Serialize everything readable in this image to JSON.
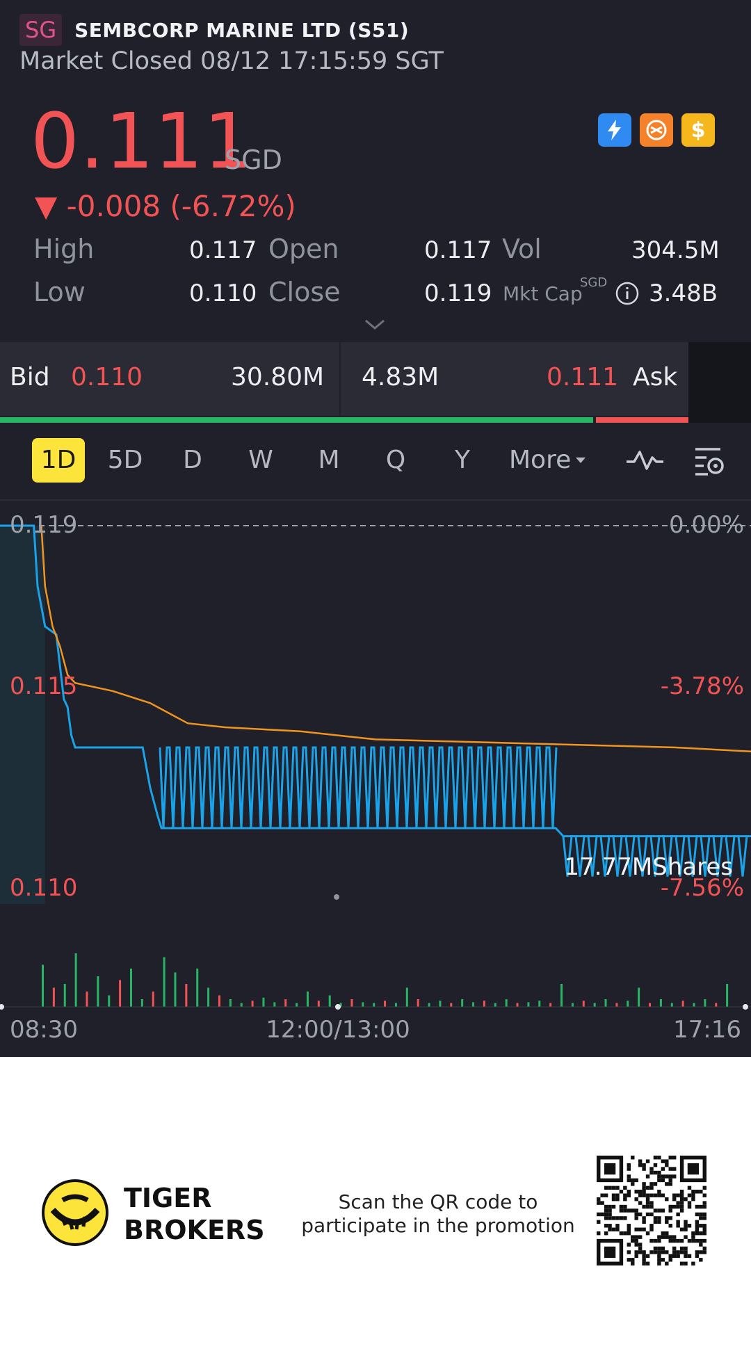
{
  "header": {
    "market_tag": "SG",
    "stock_name": "SEMBCORP MARINE LTD (S51)",
    "status": "Market Closed 08/12 17:15:59 SGT"
  },
  "quote": {
    "price": "0.111",
    "currency": "SGD",
    "change": "▼ -0.008 (-6.72%)",
    "price_color": "#f25355"
  },
  "badges": [
    {
      "icon": "lightning-level1-icon",
      "color": "#2f8af2"
    },
    {
      "icon": "swap-shares-icon",
      "color": "#f5822a"
    },
    {
      "icon": "dollar-icon",
      "color": "#f6b71c"
    }
  ],
  "stats": {
    "high_label": "High",
    "high": "0.117",
    "low_label": "Low",
    "low": "0.110",
    "open_label": "Open",
    "open": "0.117",
    "close_label": "Close",
    "close": "0.119",
    "vol_label": "Vol",
    "vol": "304.5M",
    "mktcap_label": "Mkt Cap",
    "mktcap_unit": "SGD",
    "mktcap": "3.48B"
  },
  "bidask": {
    "bid_label": "Bid",
    "bid_price": "0.110",
    "bid_size": "30.80M",
    "ask_size": "4.83M",
    "ask_price": "0.111",
    "ask_label": "Ask",
    "bid_ratio": 0.864
  },
  "tabs": [
    "1D",
    "5D",
    "D",
    "W",
    "M",
    "Q",
    "Y",
    "More"
  ],
  "active_tab": "1D",
  "tool_icons": [
    "indicator-wave-icon",
    "chart-settings-icon"
  ],
  "chart_data": {
    "type": "line",
    "y_labels_left": [
      "0.119",
      "0.115",
      "0.110"
    ],
    "y_labels_right": [
      "0.00%",
      "-3.78%",
      "-7.56%"
    ],
    "x_labels": [
      "08:30",
      "12:00/13:00",
      "17:16"
    ],
    "ylim": [
      0.11,
      0.119
    ],
    "reference_close": 0.119,
    "volume_tooltip": "17.77MShares",
    "series": [
      {
        "color": "#1aa3e8",
        "points": [
          [
            0,
            0.119
          ],
          [
            0.045,
            0.119
          ],
          [
            0.05,
            0.1175
          ],
          [
            0.06,
            0.1165
          ],
          [
            0.075,
            0.1163
          ],
          [
            0.08,
            0.1155
          ],
          [
            0.085,
            0.1147
          ],
          [
            0.09,
            0.1145
          ],
          [
            0.095,
            0.1138
          ],
          [
            0.1,
            0.1135
          ],
          [
            0.12,
            0.1135
          ],
          [
            0.14,
            0.1135
          ],
          [
            0.16,
            0.1135
          ],
          [
            0.18,
            0.1135
          ],
          [
            0.19,
            0.1135
          ],
          [
            0.2,
            0.1125
          ],
          [
            0.21,
            0.1118
          ],
          [
            0.215,
            0.1115
          ],
          [
            0.22,
            0.1115
          ],
          [
            0.3,
            0.1115
          ],
          [
            0.4,
            0.1115
          ],
          [
            0.5,
            0.1115
          ],
          [
            0.6,
            0.1115
          ],
          [
            0.7,
            0.1115
          ],
          [
            0.74,
            0.1115
          ],
          [
            0.75,
            0.1113
          ],
          [
            0.8,
            0.1113
          ],
          [
            0.9,
            0.1113
          ],
          [
            1.0,
            0.1113
          ]
        ]
      },
      {
        "color": "#f0951f",
        "points": [
          [
            0.055,
            0.119
          ],
          [
            0.06,
            0.1175
          ],
          [
            0.07,
            0.1165
          ],
          [
            0.08,
            0.116
          ],
          [
            0.09,
            0.1153
          ],
          [
            0.1,
            0.1151
          ],
          [
            0.15,
            0.1149
          ],
          [
            0.2,
            0.1146
          ],
          [
            0.23,
            0.1143
          ],
          [
            0.25,
            0.1141
          ],
          [
            0.3,
            0.114
          ],
          [
            0.4,
            0.1139
          ],
          [
            0.45,
            0.1138
          ],
          [
            0.5,
            0.1137
          ],
          [
            0.6,
            0.11365
          ],
          [
            0.7,
            0.1136
          ],
          [
            0.8,
            0.11355
          ],
          [
            0.9,
            0.1135
          ],
          [
            1.0,
            0.1134
          ]
        ]
      }
    ],
    "volume": [
      0.55,
      0.25,
      0.3,
      0.7,
      0.2,
      0.4,
      0.15,
      0.35,
      0.5,
      0.1,
      0.2,
      0.65,
      0.45,
      0.3,
      0.5,
      0.25,
      0.15,
      0.1,
      0.05,
      0.08,
      0.12,
      0.06,
      0.1,
      0.05,
      0.2,
      0.08,
      0.15,
      0.05,
      0.1,
      0.06,
      0.05,
      0.08,
      0.05,
      0.25,
      0.1,
      0.05,
      0.08,
      0.05,
      0.1,
      0.06,
      0.08,
      0.05,
      0.1,
      0.05,
      0.06,
      0.08,
      0.05,
      0.3,
      0.05,
      0.08,
      0.05,
      0.1,
      0.05,
      0.08,
      0.25,
      0.05,
      0.1,
      0.05,
      0.08,
      0.05,
      0.1,
      0.05,
      0.3
    ]
  },
  "footer": {
    "brand_line1": "TIGER",
    "brand_line2": "BROKERS",
    "promo_line1": "Scan the QR code to",
    "promo_line2": "participate in the promotion"
  }
}
